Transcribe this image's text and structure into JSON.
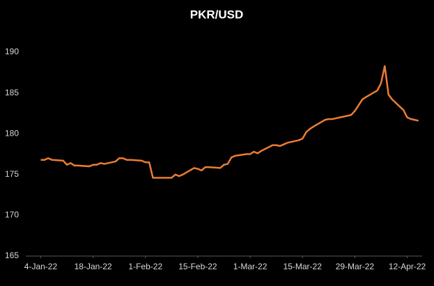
{
  "chart_data": {
    "type": "line",
    "title": "PKR/USD",
    "color": "#ed7d31",
    "x": [
      "2022-01-04",
      "2022-01-05",
      "2022-01-06",
      "2022-01-07",
      "2022-01-10",
      "2022-01-11",
      "2022-01-12",
      "2022-01-13",
      "2022-01-14",
      "2022-01-17",
      "2022-01-18",
      "2022-01-19",
      "2022-01-20",
      "2022-01-21",
      "2022-01-24",
      "2022-01-25",
      "2022-01-26",
      "2022-01-27",
      "2022-01-28",
      "2022-01-31",
      "2022-02-01",
      "2022-02-02",
      "2022-02-03",
      "2022-02-04",
      "2022-02-07",
      "2022-02-08",
      "2022-02-09",
      "2022-02-10",
      "2022-02-11",
      "2022-02-14",
      "2022-02-15",
      "2022-02-16",
      "2022-02-17",
      "2022-02-18",
      "2022-02-21",
      "2022-02-22",
      "2022-02-23",
      "2022-02-24",
      "2022-02-25",
      "2022-02-28",
      "2022-03-01",
      "2022-03-02",
      "2022-03-03",
      "2022-03-04",
      "2022-03-07",
      "2022-03-08",
      "2022-03-09",
      "2022-03-10",
      "2022-03-11",
      "2022-03-14",
      "2022-03-15",
      "2022-03-16",
      "2022-03-17",
      "2022-03-18",
      "2022-03-21",
      "2022-03-22",
      "2022-03-23",
      "2022-03-24",
      "2022-03-25",
      "2022-03-28",
      "2022-03-29",
      "2022-03-30",
      "2022-03-31",
      "2022-04-01",
      "2022-04-04",
      "2022-04-05",
      "2022-04-06",
      "2022-04-07",
      "2022-04-08",
      "2022-04-11",
      "2022-04-12",
      "2022-04-13",
      "2022-04-14",
      "2022-04-15"
    ],
    "values": [
      176.8,
      176.8,
      177.0,
      176.8,
      176.7,
      176.2,
      176.4,
      176.1,
      176.1,
      176.0,
      176.2,
      176.2,
      176.4,
      176.3,
      176.6,
      177.0,
      177.0,
      176.8,
      176.8,
      176.7,
      176.5,
      176.5,
      174.6,
      174.6,
      174.6,
      174.6,
      175.0,
      174.8,
      175.0,
      175.8,
      175.7,
      175.5,
      175.9,
      175.9,
      175.8,
      176.2,
      176.3,
      177.1,
      177.3,
      177.5,
      177.5,
      177.8,
      177.6,
      177.9,
      178.6,
      178.6,
      178.5,
      178.7,
      178.9,
      179.2,
      179.4,
      180.2,
      180.6,
      180.9,
      181.7,
      181.8,
      181.8,
      181.9,
      182.0,
      182.3,
      182.8,
      183.5,
      184.2,
      184.5,
      185.3,
      186.2,
      188.3,
      184.8,
      184.2,
      182.9,
      182.0,
      181.8,
      181.7,
      181.6
    ],
    "xlim": [
      "2021-12-31",
      "2022-04-16"
    ],
    "xticks": [
      {
        "value": "2022-01-04",
        "label": "4-Jan-22"
      },
      {
        "value": "2022-01-18",
        "label": "18-Jan-22"
      },
      {
        "value": "2022-02-01",
        "label": "1-Feb-22"
      },
      {
        "value": "2022-02-15",
        "label": "15-Feb-22"
      },
      {
        "value": "2022-03-01",
        "label": "1-Mar-22"
      },
      {
        "value": "2022-03-15",
        "label": "15-Mar-22"
      },
      {
        "value": "2022-03-29",
        "label": "29-Mar-22"
      },
      {
        "value": "2022-04-12",
        "label": "12-Apr-22"
      }
    ],
    "ylim": [
      165,
      190
    ],
    "yticks": [
      165,
      170,
      175,
      180,
      185,
      190
    ],
    "grid": false
  }
}
